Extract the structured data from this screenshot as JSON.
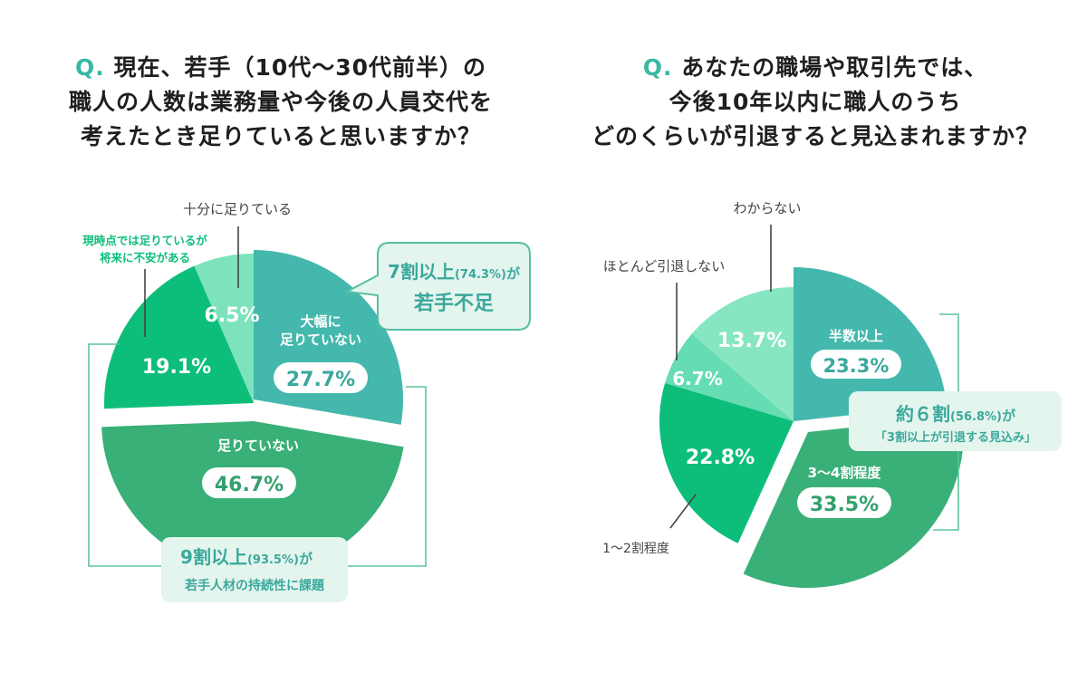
{
  "colors": {
    "accent": "#3bb8a3",
    "dark_teal": "#44b8ad",
    "green_mid": "#39b077",
    "green_bright": "#0cbe7a",
    "mint": "#7ce3bd",
    "bubble_fill": "#e4f5ee",
    "bubble_border": "#55bfa3",
    "bracket": "#5cc49e",
    "text_dark": "#222222"
  },
  "chart_data": [
    {
      "type": "pie",
      "title_prefix": "Q.",
      "title_lines": [
        "現在、若手（10代〜30代前半）の",
        "職人の人数は業務量や今後の人員交代を",
        "考えたとき足りていると思いますか？"
      ],
      "slices": [
        {
          "label": "大幅に足りていない",
          "label_lines": [
            "大幅に",
            "足りていない"
          ],
          "value": 27.7,
          "value_text": "27.7%",
          "color": "#44b8ad"
        },
        {
          "label": "足りていない",
          "label_lines": [
            "足りていない"
          ],
          "value": 46.7,
          "value_text": "46.7%",
          "color": "#39b077"
        },
        {
          "label": "現時点では足りているが将来に不安がある",
          "label_lines": [],
          "value": 19.1,
          "value_text": "19.1%",
          "color": "#0cbe7a"
        },
        {
          "label": "十分に足りている",
          "label_lines": [],
          "value": 6.5,
          "value_text": "6.5%",
          "color": "#7ce3bd"
        }
      ],
      "outside_labels": [
        {
          "lines": [
            "十分に足りている"
          ]
        },
        {
          "lines": [
            "現時点では足りているが",
            "将来に不安がある"
          ]
        }
      ],
      "callouts": [
        {
          "main": "7割以上",
          "pct": "(74.3%)",
          "suffix": "が",
          "sub": "若手不足"
        },
        {
          "main": "9割以上",
          "pct": "(93.5%)",
          "suffix": "が",
          "sub": "若手人材の持続性に課題"
        }
      ]
    },
    {
      "type": "pie",
      "title_prefix": "Q.",
      "title_lines": [
        "あなたの職場や取引先では、",
        "今後10年以内に職人のうち",
        "どのくらいが引退すると見込まれますか？"
      ],
      "slices": [
        {
          "label": "半数以上",
          "label_lines": [
            "半数以上"
          ],
          "value": 23.3,
          "value_text": "23.3%",
          "color": "#44b8ad"
        },
        {
          "label": "3〜4割程度",
          "label_lines": [
            "3〜4割程度"
          ],
          "value": 33.5,
          "value_text": "33.5%",
          "color": "#39b077"
        },
        {
          "label": "1〜2割程度",
          "label_lines": [],
          "value": 22.8,
          "value_text": "22.8%",
          "color": "#0cbe7a"
        },
        {
          "label": "ほとんど引退しない",
          "label_lines": [],
          "value": 6.7,
          "value_text": "6.7%",
          "color": "#66dcb3"
        },
        {
          "label": "わからない",
          "label_lines": [],
          "value": 13.7,
          "value_text": "13.7%",
          "color": "#86e6c2"
        }
      ],
      "outside_labels": [
        {
          "lines": [
            "わからない"
          ]
        },
        {
          "lines": [
            "ほとんど引退しない"
          ]
        },
        {
          "lines": [
            "1〜2割程度"
          ]
        }
      ],
      "callouts": [
        {
          "main": "約６割",
          "pct": "(56.8%)",
          "suffix": "が",
          "sub": "「3割以上が引退する見込み」"
        }
      ]
    }
  ]
}
